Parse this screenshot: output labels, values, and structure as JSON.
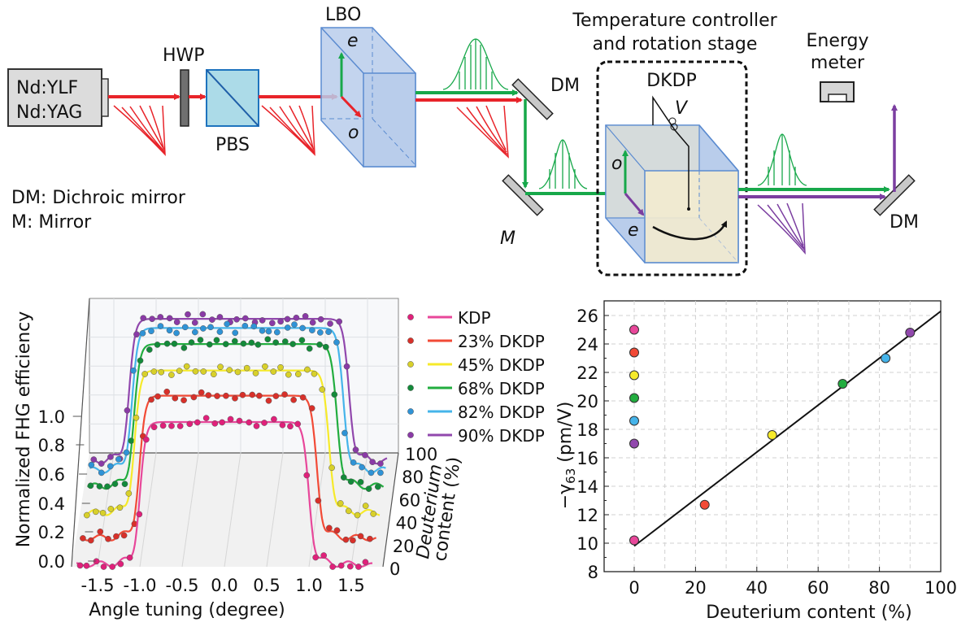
{
  "diagram": {
    "laser_lines": [
      "Nd:YLF",
      "Nd:YAG"
    ],
    "hwp": "HWP",
    "pbs": "PBS",
    "lbo": "LBO",
    "lbo_axes": {
      "e": "e",
      "o": "o"
    },
    "dm_top": "DM",
    "mirror": "M",
    "stage_title": [
      "Temperature controller",
      "and rotation stage"
    ],
    "dkdp": "DKDP",
    "voltage": "V",
    "dkdp_axes": {
      "o": "o",
      "e": "e"
    },
    "dm_out": "DM",
    "energy_meter": [
      "Energy",
      "meter"
    ],
    "key": [
      "DM: Dichroic mirror",
      "M: Mirror"
    ],
    "colors": {
      "fundamental": "#e8242a",
      "second_harmonic": "#17a84a",
      "fourth_harmonic": "#7b3ea0",
      "crystal": "#b9cdeb",
      "pbs": "#acdbe8"
    }
  },
  "chart_data": [
    {
      "type": "line",
      "projection": "3d-waterfall",
      "xlabel": "Angle tuning (degree)",
      "ylabel": "Normalized FHG efficiency",
      "zlabel": [
        "Deuterium",
        "content (%)"
      ],
      "xticks": [
        "-1.5",
        "-1.0",
        "-0.5",
        "0.0",
        "0.5",
        "1.0",
        "1.5"
      ],
      "yticks": [
        "0.0",
        "0.2",
        "0.4",
        "0.6",
        "0.8",
        "1.0"
      ],
      "zticks": [
        "0",
        "20",
        "40",
        "60",
        "80",
        "100"
      ],
      "xlim": [
        -1.8,
        1.8
      ],
      "ylim": [
        0,
        1
      ],
      "zlim": [
        0,
        100
      ],
      "legend_position": "right",
      "series": [
        {
          "name": "KDP",
          "deuterium": 0,
          "color": "#e8479a",
          "dot": "#e0207a",
          "acceptance_half_width_deg": 1.0
        },
        {
          "name": "23% DKDP",
          "deuterium": 23,
          "color": "#f24a36",
          "dot": "#d8302a",
          "acceptance_half_width_deg": 1.05
        },
        {
          "name": "45% DKDP",
          "deuterium": 45,
          "color": "#f6ea2a",
          "dot": "#d8d02a",
          "acceptance_half_width_deg": 1.15
        },
        {
          "name": "68% DKDP",
          "deuterium": 68,
          "color": "#22ad3f",
          "dot": "#138a3a",
          "acceptance_half_width_deg": 1.2
        },
        {
          "name": "82% DKDP",
          "deuterium": 82,
          "color": "#45b4ea",
          "dot": "#2f93d6",
          "acceptance_half_width_deg": 1.25
        },
        {
          "name": "90% DKDP",
          "deuterium": 90,
          "color": "#9148ad",
          "dot": "#8a3aa6",
          "acceptance_half_width_deg": 1.3
        }
      ]
    },
    {
      "type": "scatter",
      "xlabel": "Deuterium content (%)",
      "ylabel": {
        "prefix": "−γ",
        "sub": "63",
        "suffix": " (pm/V)"
      },
      "xlim": [
        -10,
        100
      ],
      "ylim": [
        8,
        27
      ],
      "xticks": [
        "0",
        "20",
        "40",
        "60",
        "80",
        "100"
      ],
      "yticks": [
        "8",
        "10",
        "12",
        "14",
        "16",
        "18",
        "20",
        "22",
        "24",
        "26"
      ],
      "grid": true,
      "points": [
        {
          "x": 0,
          "y": 25.0,
          "color": "#e8479a"
        },
        {
          "x": 0,
          "y": 23.4,
          "color": "#f24a36"
        },
        {
          "x": 0,
          "y": 21.8,
          "color": "#f6ea2a"
        },
        {
          "x": 0,
          "y": 20.2,
          "color": "#22ad3f"
        },
        {
          "x": 0,
          "y": 18.6,
          "color": "#45b4ea"
        },
        {
          "x": 0,
          "y": 17.0,
          "color": "#9148ad"
        },
        {
          "x": 0,
          "y": 10.2,
          "color": "#e8479a"
        },
        {
          "x": 23,
          "y": 12.7,
          "color": "#f24a36"
        },
        {
          "x": 45,
          "y": 17.6,
          "color": "#f6ea2a"
        },
        {
          "x": 68,
          "y": 21.2,
          "color": "#22ad3f"
        },
        {
          "x": 82,
          "y": 23.0,
          "color": "#45b4ea"
        },
        {
          "x": 90,
          "y": 24.8,
          "color": "#9148ad"
        }
      ],
      "fit_line": {
        "x": [
          0,
          100
        ],
        "y": [
          9.8,
          26.3
        ],
        "color": "#111111"
      }
    }
  ]
}
